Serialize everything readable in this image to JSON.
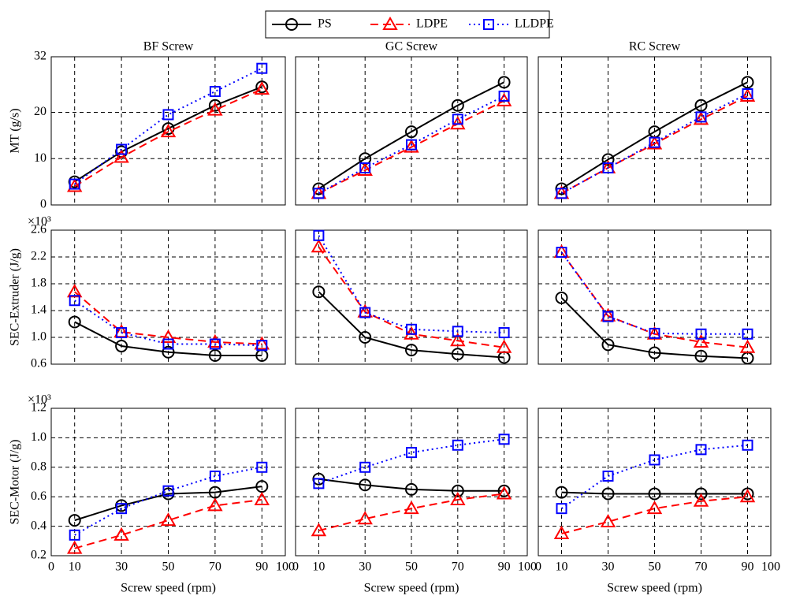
{
  "chart_data": [
    {
      "type": "line",
      "title": "BF Screw",
      "ylabel": "MT (g/s)",
      "x": [
        10,
        30,
        50,
        70,
        90
      ],
      "xlim": [
        0,
        100
      ],
      "xticks": [
        0,
        10,
        30,
        50,
        70,
        90,
        100
      ],
      "ylim": [
        0,
        32
      ],
      "yticks": [
        0,
        10,
        20,
        32
      ],
      "grid": true,
      "series": [
        {
          "name": "PS",
          "color": "#000000",
          "dash": "solid",
          "marker": "circle",
          "values": [
            5,
            11.5,
            16.5,
            21.5,
            25.5
          ]
        },
        {
          "name": "LDPE",
          "color": "#ff0000",
          "dash": "dashed",
          "marker": "triangle",
          "values": [
            4,
            10.3,
            15.8,
            20.5,
            25
          ]
        },
        {
          "name": "LLDPE",
          "color": "#0000ff",
          "dash": "dotted",
          "marker": "square",
          "values": [
            4.5,
            12,
            19.5,
            24.5,
            29.5
          ]
        }
      ]
    },
    {
      "type": "line",
      "title": "GC Screw",
      "x": [
        10,
        30,
        50,
        70,
        90
      ],
      "xlim": [
        0,
        100
      ],
      "xticks": [
        0,
        10,
        30,
        50,
        70,
        90,
        100
      ],
      "ylim": [
        0,
        32
      ],
      "yticks": [
        0,
        10,
        20,
        32
      ],
      "grid": true,
      "series": [
        {
          "name": "PS",
          "color": "#000000",
          "dash": "solid",
          "marker": "circle",
          "values": [
            3.5,
            10,
            15.8,
            21.5,
            26.5
          ]
        },
        {
          "name": "LDPE",
          "color": "#ff0000",
          "dash": "dashed",
          "marker": "triangle",
          "values": [
            2.5,
            7.5,
            12.5,
            17.5,
            22.5
          ]
        },
        {
          "name": "LLDPE",
          "color": "#0000ff",
          "dash": "dotted",
          "marker": "square",
          "values": [
            2.5,
            8,
            13,
            18.5,
            23.5
          ]
        }
      ]
    },
    {
      "type": "line",
      "title": "RC Screw",
      "x": [
        10,
        30,
        50,
        70,
        90
      ],
      "xlim": [
        0,
        100
      ],
      "xticks": [
        0,
        10,
        30,
        50,
        70,
        90,
        100
      ],
      "ylim": [
        0,
        32
      ],
      "yticks": [
        0,
        10,
        20,
        32
      ],
      "grid": true,
      "series": [
        {
          "name": "PS",
          "color": "#000000",
          "dash": "solid",
          "marker": "circle",
          "values": [
            3.5,
            9.8,
            15.8,
            21.5,
            26.5
          ]
        },
        {
          "name": "LDPE",
          "color": "#ff0000",
          "dash": "dashed",
          "marker": "triangle",
          "values": [
            2.5,
            8,
            13.2,
            18.5,
            23.5
          ]
        },
        {
          "name": "LLDPE",
          "color": "#0000ff",
          "dash": "dotted",
          "marker": "square",
          "values": [
            2.5,
            8,
            13.5,
            19,
            24
          ]
        }
      ]
    },
    {
      "type": "line",
      "ylabel": "SEC-Extruder (J/g)",
      "annotation": "×10³",
      "x": [
        10,
        30,
        50,
        70,
        90
      ],
      "xlim": [
        0,
        100
      ],
      "xticks": [
        0,
        10,
        30,
        50,
        70,
        90,
        100
      ],
      "ylim": [
        0.6,
        2.6
      ],
      "yticks": [
        0.6,
        {
          "value": 1,
          "label": "1.0"
        },
        1.4,
        1.8,
        2.2,
        2.6
      ],
      "grid": true,
      "series": [
        {
          "name": "PS",
          "color": "#000000",
          "dash": "solid",
          "marker": "circle",
          "values": [
            1.23,
            0.87,
            0.78,
            0.73,
            0.73
          ]
        },
        {
          "name": "LDPE",
          "color": "#ff0000",
          "dash": "dashed",
          "marker": "triangle",
          "values": [
            1.68,
            1.08,
            1.0,
            0.93,
            0.9
          ]
        },
        {
          "name": "LLDPE",
          "color": "#0000ff",
          "dash": "dotted",
          "marker": "square",
          "values": [
            1.55,
            1.07,
            0.9,
            0.9,
            0.88
          ]
        }
      ]
    },
    {
      "type": "line",
      "x": [
        10,
        30,
        50,
        70,
        90
      ],
      "xlim": [
        0,
        100
      ],
      "xticks": [
        0,
        10,
        30,
        50,
        70,
        90,
        100
      ],
      "ylim": [
        0.6,
        2.6
      ],
      "yticks": [
        0.6,
        {
          "value": 1,
          "label": "1.0"
        },
        1.4,
        1.8,
        2.2,
        2.6
      ],
      "grid": true,
      "series": [
        {
          "name": "PS",
          "color": "#000000",
          "dash": "solid",
          "marker": "circle",
          "values": [
            1.68,
            1.0,
            0.81,
            0.75,
            0.7
          ]
        },
        {
          "name": "LDPE",
          "color": "#ff0000",
          "dash": "dashed",
          "marker": "triangle",
          "values": [
            2.35,
            1.38,
            1.05,
            0.95,
            0.85
          ]
        },
        {
          "name": "LLDPE",
          "color": "#0000ff",
          "dash": "dotted",
          "marker": "square",
          "values": [
            2.52,
            1.37,
            1.12,
            1.09,
            1.07
          ]
        }
      ]
    },
    {
      "type": "line",
      "x": [
        10,
        30,
        50,
        70,
        90
      ],
      "xlim": [
        0,
        100
      ],
      "xticks": [
        0,
        10,
        30,
        50,
        70,
        90,
        100
      ],
      "ylim": [
        0.6,
        2.6
      ],
      "yticks": [
        0.6,
        {
          "value": 1,
          "label": "1.0"
        },
        1.4,
        1.8,
        2.2,
        2.6
      ],
      "grid": true,
      "series": [
        {
          "name": "PS",
          "color": "#000000",
          "dash": "solid",
          "marker": "circle",
          "values": [
            1.59,
            0.89,
            0.77,
            0.72,
            0.69
          ]
        },
        {
          "name": "LDPE",
          "color": "#ff0000",
          "dash": "dashed",
          "marker": "triangle",
          "values": [
            2.27,
            1.32,
            1.05,
            0.93,
            0.85
          ]
        },
        {
          "name": "LLDPE",
          "color": "#0000ff",
          "dash": "dotted",
          "marker": "square",
          "values": [
            2.27,
            1.31,
            1.06,
            1.05,
            1.05
          ]
        }
      ]
    },
    {
      "type": "line",
      "ylabel": "SEC-Motor (J/g)",
      "xlabel": "Screw speed (rpm)",
      "annotation": "×10³",
      "x": [
        10,
        30,
        50,
        70,
        90
      ],
      "xlim": [
        0,
        100
      ],
      "xticks": [
        0,
        10,
        30,
        50,
        70,
        90,
        100
      ],
      "ylim": [
        0.2,
        1.2
      ],
      "yticks": [
        0.2,
        0.4,
        0.6,
        0.8,
        {
          "value": 1,
          "label": "1.0"
        },
        1.2
      ],
      "grid": true,
      "series": [
        {
          "name": "PS",
          "color": "#000000",
          "dash": "solid",
          "marker": "circle",
          "values": [
            0.44,
            0.54,
            0.62,
            0.63,
            0.67
          ]
        },
        {
          "name": "LDPE",
          "color": "#ff0000",
          "dash": "dashed",
          "marker": "triangle",
          "values": [
            0.25,
            0.34,
            0.44,
            0.54,
            0.58
          ]
        },
        {
          "name": "LLDPE",
          "color": "#0000ff",
          "dash": "dotted",
          "marker": "square",
          "values": [
            0.34,
            0.52,
            0.64,
            0.74,
            0.8
          ]
        }
      ]
    },
    {
      "type": "line",
      "xlabel": "Screw speed (rpm)",
      "x": [
        10,
        30,
        50,
        70,
        90
      ],
      "xlim": [
        0,
        100
      ],
      "xticks": [
        0,
        10,
        30,
        50,
        70,
        90,
        100
      ],
      "ylim": [
        0.2,
        1.2
      ],
      "yticks": [
        0.2,
        0.4,
        0.6,
        0.8,
        {
          "value": 1,
          "label": "1.0"
        },
        1.2
      ],
      "grid": true,
      "series": [
        {
          "name": "PS",
          "color": "#000000",
          "dash": "solid",
          "marker": "circle",
          "values": [
            0.72,
            0.68,
            0.65,
            0.64,
            0.64
          ]
        },
        {
          "name": "LDPE",
          "color": "#ff0000",
          "dash": "dashed",
          "marker": "triangle",
          "values": [
            0.37,
            0.45,
            0.52,
            0.58,
            0.62
          ]
        },
        {
          "name": "LLDPE",
          "color": "#0000ff",
          "dash": "dotted",
          "marker": "square",
          "values": [
            0.69,
            0.8,
            0.9,
            0.95,
            0.99
          ]
        }
      ]
    },
    {
      "type": "line",
      "xlabel": "Screw speed (rpm)",
      "x": [
        10,
        30,
        50,
        70,
        90
      ],
      "xlim": [
        0,
        100
      ],
      "xticks": [
        0,
        10,
        30,
        50,
        70,
        90,
        100
      ],
      "ylim": [
        0.2,
        1.2
      ],
      "yticks": [
        0.2,
        0.4,
        0.6,
        0.8,
        {
          "value": 1,
          "label": "1.0"
        },
        1.2
      ],
      "grid": true,
      "series": [
        {
          "name": "PS",
          "color": "#000000",
          "dash": "solid",
          "marker": "circle",
          "values": [
            0.63,
            0.62,
            0.62,
            0.62,
            0.62
          ]
        },
        {
          "name": "LDPE",
          "color": "#ff0000",
          "dash": "dashed",
          "marker": "triangle",
          "values": [
            0.35,
            0.43,
            0.52,
            0.57,
            0.6
          ]
        },
        {
          "name": "LLDPE",
          "color": "#0000ff",
          "dash": "dotted",
          "marker": "square",
          "values": [
            0.52,
            0.74,
            0.85,
            0.92,
            0.95
          ]
        }
      ]
    }
  ]
}
